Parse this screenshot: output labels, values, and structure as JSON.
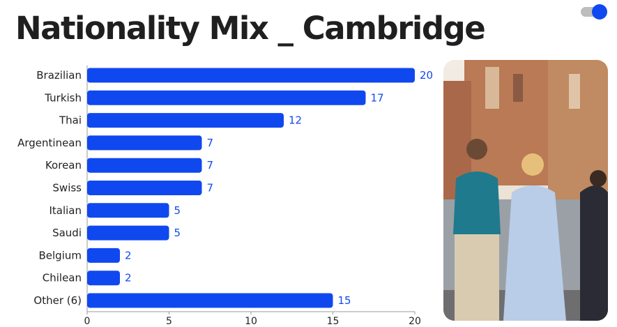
{
  "title": "Nationality Mix _ Cambridge",
  "colors": {
    "bar": "#1048f0",
    "label": "#1048f0",
    "text": "#222222",
    "title": "#1f1f1f"
  },
  "toggle": {
    "state": "on"
  },
  "photo": {
    "description_icon": "photo-icon"
  },
  "chart_data": {
    "type": "bar",
    "orientation": "horizontal",
    "categories": [
      "Brazilian",
      "Turkish",
      "Thai",
      "Argentinean",
      "Korean",
      "Swiss",
      "Italian",
      "Saudi",
      "Belgium",
      "Chilean",
      "Other (6)"
    ],
    "values": [
      20,
      17,
      12,
      7,
      7,
      7,
      5,
      5,
      2,
      2,
      15
    ],
    "xlim": [
      0,
      20
    ],
    "xticks": [
      0,
      5,
      10,
      15,
      20
    ],
    "grid": false,
    "legend": "none"
  }
}
